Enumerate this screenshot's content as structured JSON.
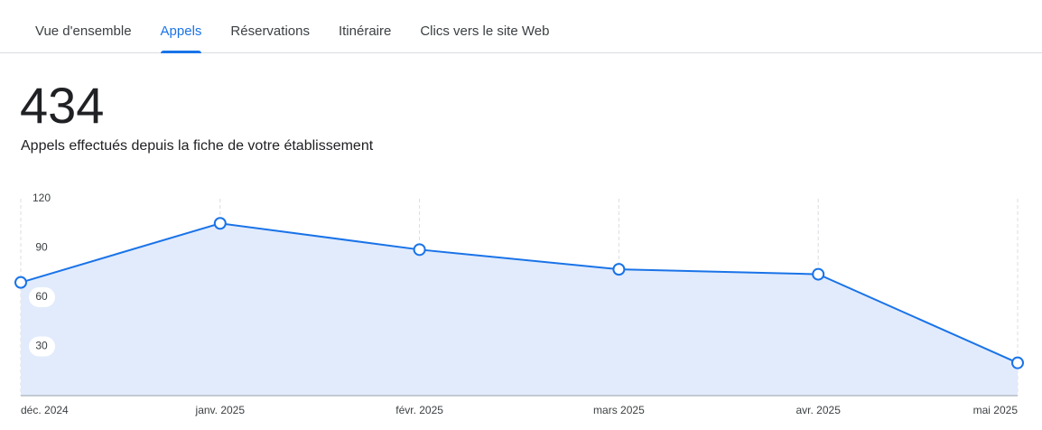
{
  "tabs": [
    "Vue d'ensemble",
    "Appels",
    "Réservations",
    "Itinéraire",
    "Clics vers le site Web"
  ],
  "active_tab": 1,
  "total": "434",
  "subtitle": "Appels effectués depuis la fiche de votre établissement",
  "chart_data": {
    "type": "line",
    "categories": [
      "déc. 2024",
      "janv. 2025",
      "févr. 2025",
      "mars 2025",
      "avr. 2025",
      "mai 2025"
    ],
    "series": [
      {
        "name": "Appels",
        "color": "#1a73e8",
        "values": [
          69,
          105,
          89,
          77,
          74,
          20
        ]
      }
    ],
    "ylim": [
      0,
      120
    ],
    "yticks": [
      30,
      60,
      90,
      120
    ],
    "area_color": "#e1ebfc"
  }
}
